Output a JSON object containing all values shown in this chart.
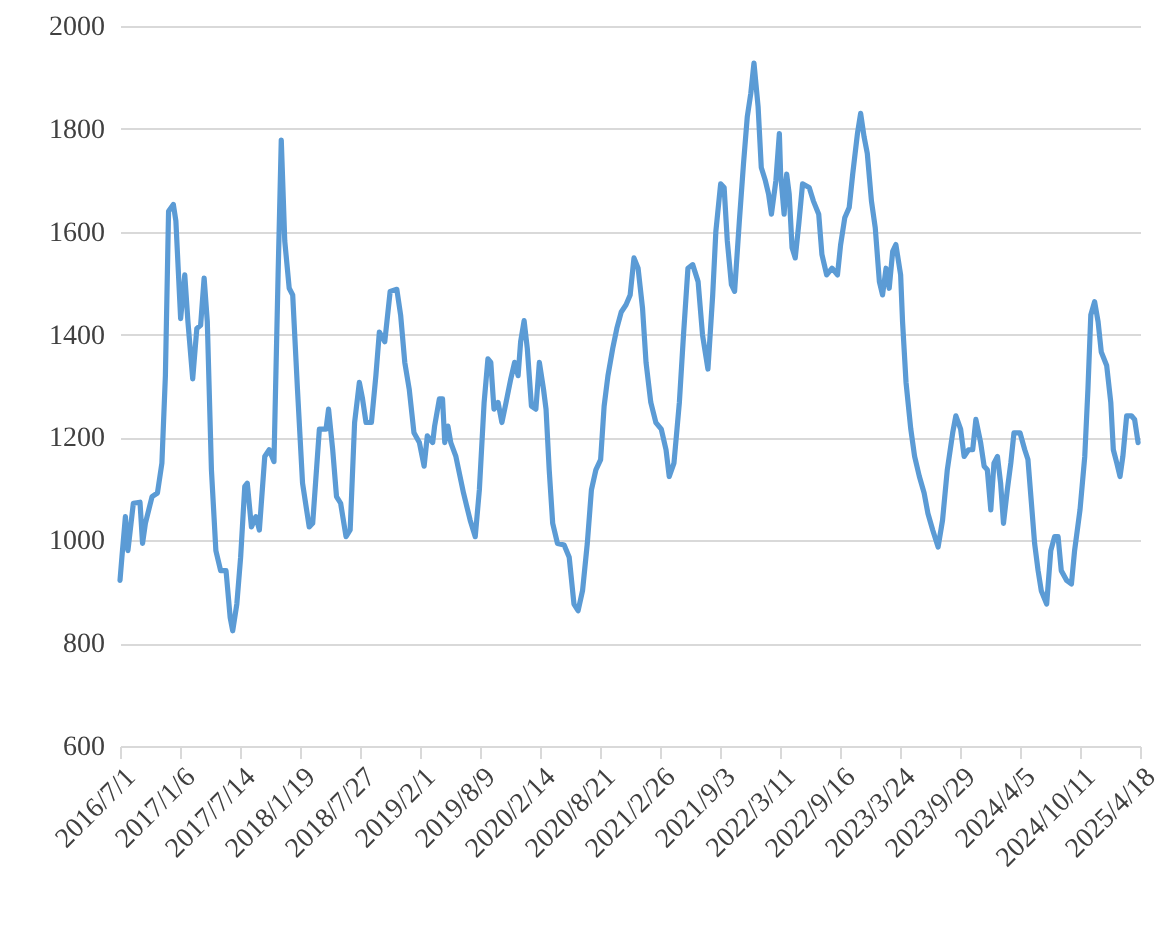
{
  "chart_data": {
    "type": "line",
    "xlim": [
      "2016-07-01",
      "2025-04-18"
    ],
    "ylim": [
      600,
      2000
    ],
    "yticks": [
      600,
      800,
      1000,
      1200,
      1400,
      1600,
      1800,
      2000
    ],
    "grid": "y",
    "line_style": "solid",
    "marker": "none",
    "xticks": [
      {
        "value": "2016-07-01",
        "label": "2016/7/1"
      },
      {
        "value": "2017-01-06",
        "label": "2017/1/6"
      },
      {
        "value": "2017-07-14",
        "label": "2017/7/14"
      },
      {
        "value": "2018-01-19",
        "label": "2018/1/19"
      },
      {
        "value": "2018-07-27",
        "label": "2018/7/27"
      },
      {
        "value": "2019-02-01",
        "label": "2019/2/1"
      },
      {
        "value": "2019-08-09",
        "label": "2019/8/9"
      },
      {
        "value": "2020-02-14",
        "label": "2020/2/14"
      },
      {
        "value": "2020-08-21",
        "label": "2020/8/21"
      },
      {
        "value": "2021-02-26",
        "label": "2021/2/26"
      },
      {
        "value": "2021-09-03",
        "label": "2021/9/3"
      },
      {
        "value": "2022-03-11",
        "label": "2022/3/11"
      },
      {
        "value": "2022-09-16",
        "label": "2022/9/16"
      },
      {
        "value": "2023-03-24",
        "label": "2023/3/24"
      },
      {
        "value": "2023-09-29",
        "label": "2023/9/29"
      },
      {
        "value": "2024-04-05",
        "label": "2024/4/5"
      },
      {
        "value": "2024-10-11",
        "label": "2024/10/11"
      },
      {
        "value": "2025-04-18",
        "label": "2025/4/18"
      }
    ],
    "x": [
      "2016-07-01",
      "2016-07-07",
      "2016-07-18",
      "2016-07-26",
      "2016-08-12",
      "2016-09-02",
      "2016-09-10",
      "2016-09-19",
      "2016-10-10",
      "2016-10-27",
      "2016-11-10",
      "2016-11-21",
      "2016-12-01",
      "2016-12-16",
      "2016-12-24",
      "2017-01-08",
      "2017-01-21",
      "2017-01-31",
      "2017-02-15",
      "2017-02-28",
      "2017-03-12",
      "2017-03-23",
      "2017-04-02",
      "2017-04-15",
      "2017-04-29",
      "2017-05-14",
      "2017-05-31",
      "2017-06-13",
      "2017-06-21",
      "2017-07-04",
      "2017-07-16",
      "2017-07-29",
      "2017-08-06",
      "2017-08-19",
      "2017-09-02",
      "2017-09-13",
      "2017-09-30",
      "2017-10-14",
      "2017-10-29",
      "2017-11-11",
      "2017-11-21",
      "2017-12-02",
      "2017-12-16",
      "2017-12-27",
      "2018-01-11",
      "2018-01-27",
      "2018-02-17",
      "2018-02-28",
      "2018-03-21",
      "2018-04-11",
      "2018-04-19",
      "2018-05-02",
      "2018-05-14",
      "2018-05-27",
      "2018-06-13",
      "2018-06-26",
      "2018-07-10",
      "2018-07-25",
      "2018-08-04",
      "2018-08-15",
      "2018-09-01",
      "2018-09-15",
      "2018-09-26",
      "2018-10-13",
      "2018-10-30",
      "2018-11-20",
      "2018-12-02",
      "2018-12-15",
      "2018-12-29",
      "2019-01-13",
      "2019-01-30",
      "2019-02-14",
      "2019-02-24",
      "2019-03-13",
      "2019-03-19",
      "2019-04-03",
      "2019-04-13",
      "2019-04-20",
      "2019-04-30",
      "2019-05-09",
      "2019-05-25",
      "2019-06-18",
      "2019-07-09",
      "2019-07-25",
      "2019-08-07",
      "2019-08-22",
      "2019-09-03",
      "2019-09-12",
      "2019-09-22",
      "2019-10-05",
      "2019-10-17",
      "2019-10-30",
      "2019-11-14",
      "2019-11-26",
      "2019-12-07",
      "2019-12-15",
      "2019-12-26",
      "2020-01-05",
      "2020-01-18",
      "2020-02-01",
      "2020-02-12",
      "2020-02-25",
      "2020-03-04",
      "2020-03-14",
      "2020-03-25",
      "2020-04-09",
      "2020-04-30",
      "2020-05-16",
      "2020-05-31",
      "2020-06-13",
      "2020-06-27",
      "2020-07-12",
      "2020-07-25",
      "2020-08-08",
      "2020-08-23",
      "2020-09-03",
      "2020-09-15",
      "2020-09-30",
      "2020-10-13",
      "2020-10-27",
      "2020-11-11",
      "2020-11-24",
      "2020-12-06",
      "2020-12-19",
      "2021-01-02",
      "2021-01-13",
      "2021-01-28",
      "2021-02-13",
      "2021-03-02",
      "2021-03-17",
      "2021-03-27",
      "2021-04-11",
      "2021-04-28",
      "2021-05-11",
      "2021-05-25",
      "2021-06-09",
      "2021-06-26",
      "2021-07-10",
      "2021-07-27",
      "2021-08-11",
      "2021-08-21",
      "2021-09-05",
      "2021-09-16",
      "2021-09-26",
      "2021-10-09",
      "2021-10-19",
      "2021-11-03",
      "2021-11-16",
      "2021-11-28",
      "2021-12-09",
      "2021-12-19",
      "2022-01-01",
      "2022-01-11",
      "2022-01-24",
      "2022-02-03",
      "2022-02-12",
      "2022-02-26",
      "2022-03-09",
      "2022-03-13",
      "2022-03-24",
      "2022-04-01",
      "2022-04-09",
      "2022-04-18",
      "2022-04-28",
      "2022-05-09",
      "2022-05-21",
      "2022-06-11",
      "2022-06-24",
      "2022-07-11",
      "2022-07-21",
      "2022-08-05",
      "2022-08-22",
      "2022-09-08",
      "2022-09-18",
      "2022-10-01",
      "2022-10-15",
      "2022-10-26",
      "2022-11-10",
      "2022-11-20",
      "2022-12-01",
      "2022-12-11",
      "2022-12-24",
      "2023-01-05",
      "2023-01-18",
      "2023-01-28",
      "2023-02-08",
      "2023-02-18",
      "2023-03-01",
      "2023-03-11",
      "2023-03-26",
      "2023-04-01",
      "2023-04-12",
      "2023-04-27",
      "2023-05-09",
      "2023-05-24",
      "2023-06-08",
      "2023-06-20",
      "2023-07-05",
      "2023-07-22",
      "2023-08-05",
      "2023-08-20",
      "2023-09-06",
      "2023-09-16",
      "2023-10-01",
      "2023-10-12",
      "2023-10-26",
      "2023-11-08",
      "2023-11-18",
      "2023-12-03",
      "2023-12-14",
      "2023-12-24",
      "2024-01-04",
      "2024-01-14",
      "2024-01-25",
      "2024-02-04",
      "2024-02-13",
      "2024-02-25",
      "2024-03-07",
      "2024-03-17",
      "2024-04-05",
      "2024-04-20",
      "2024-04-30",
      "2024-05-11",
      "2024-05-21",
      "2024-06-01",
      "2024-06-11",
      "2024-06-28",
      "2024-07-11",
      "2024-07-23",
      "2024-08-03",
      "2024-08-13",
      "2024-08-30",
      "2024-09-14",
      "2024-09-24",
      "2024-10-11",
      "2024-10-26",
      "2024-11-05",
      "2024-11-14",
      "2024-11-26",
      "2024-12-07",
      "2024-12-17",
      "2025-01-03",
      "2025-01-16",
      "2025-01-24",
      "2025-02-04",
      "2025-02-14",
      "2025-02-23",
      "2025-03-07",
      "2025-03-22",
      "2025-04-01",
      "2025-04-12"
    ],
    "series": [
      {
        "color": "#5b9bd5",
        "values": [
          922,
          967,
          1046,
          980,
          1072,
          1074,
          994,
          1033,
          1085,
          1092,
          1150,
          1320,
          1640,
          1653,
          1621,
          1431,
          1516,
          1425,
          1314,
          1412,
          1418,
          1510,
          1425,
          1137,
          980,
          941,
          941,
          850,
          824,
          876,
          967,
          1105,
          1111,
          1026,
          1046,
          1020,
          1163,
          1176,
          1153,
          1516,
          1778,
          1582,
          1490,
          1477,
          1294,
          1111,
          1026,
          1033,
          1216,
          1216,
          1255,
          1176,
          1085,
          1072,
          1007,
          1020,
          1229,
          1307,
          1275,
          1229,
          1229,
          1320,
          1405,
          1386,
          1484,
          1488,
          1438,
          1346,
          1294,
          1209,
          1190,
          1144,
          1203,
          1190,
          1222,
          1275,
          1275,
          1190,
          1222,
          1190,
          1163,
          1092,
          1039,
          1007,
          1098,
          1268,
          1353,
          1346,
          1255,
          1268,
          1229,
          1268,
          1314,
          1346,
          1320,
          1386,
          1427,
          1373,
          1261,
          1255,
          1346,
          1294,
          1255,
          1137,
          1033,
          994,
          991,
          967,
          876,
          863,
          902,
          994,
          1098,
          1137,
          1157,
          1261,
          1320,
          1373,
          1412,
          1444,
          1458,
          1477,
          1549,
          1529,
          1451,
          1346,
          1268,
          1229,
          1216,
          1176,
          1124,
          1150,
          1268,
          1399,
          1529,
          1536,
          1503,
          1399,
          1333,
          1477,
          1601,
          1693,
          1686,
          1582,
          1497,
          1484,
          1621,
          1732,
          1824,
          1869,
          1928,
          1843,
          1725,
          1699,
          1673,
          1634,
          1699,
          1791,
          1712,
          1634,
          1712,
          1673,
          1569,
          1549,
          1614,
          1693,
          1686,
          1660,
          1634,
          1556,
          1516,
          1529,
          1516,
          1575,
          1627,
          1647,
          1712,
          1791,
          1830,
          1784,
          1752,
          1660,
          1608,
          1503,
          1477,
          1529,
          1490,
          1562,
          1575,
          1516,
          1425,
          1307,
          1216,
          1163,
          1124,
          1092,
          1052,
          1020,
          987,
          1039,
          1137,
          1209,
          1242,
          1216,
          1163,
          1176,
          1176,
          1235,
          1190,
          1144,
          1137,
          1059,
          1150,
          1163,
          1111,
          1033,
          1098,
          1150,
          1209,
          1209,
          1176,
          1157,
          1072,
          994,
          941,
          902,
          876,
          980,
          1007,
          1007,
          941,
          922,
          915,
          980,
          1059,
          1163,
          1294,
          1438,
          1464,
          1425,
          1366,
          1340,
          1268,
          1176,
          1150,
          1124,
          1163,
          1242,
          1242,
          1235,
          1190
        ]
      }
    ]
  }
}
